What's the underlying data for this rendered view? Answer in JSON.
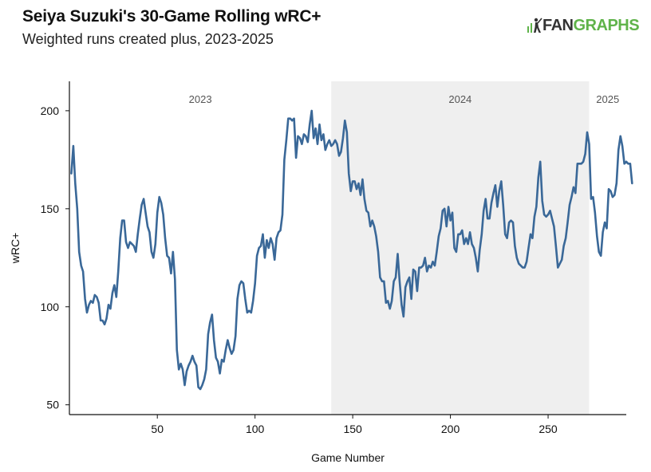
{
  "header": {
    "title": "Seiya Suzuki's 30-Game Rolling wRC+",
    "subtitle": "Weighted runs created plus, 2023-2025",
    "logo": {
      "fan": "FAN",
      "graphs": "GRAPHS",
      "icon": "fangraphs-logo-icon"
    }
  },
  "colors": {
    "line": "#3a6898",
    "band": "#efefef",
    "logo_green": "#5fb34a"
  },
  "chart_data": {
    "type": "line",
    "xlabel": "Game Number",
    "ylabel": "wRC+",
    "xlim": [
      5,
      290
    ],
    "ylim": [
      45,
      215
    ],
    "x_ticks": [
      50,
      100,
      150,
      200,
      250
    ],
    "y_ticks": [
      50,
      100,
      150,
      200
    ],
    "grid": false,
    "shaded_ranges": [
      {
        "label": "2023",
        "x": [
          5,
          139
        ],
        "shaded": false
      },
      {
        "label": "2024",
        "x": [
          139,
          271
        ],
        "shaded": true
      },
      {
        "label": "2025",
        "x": [
          271,
          290
        ],
        "shaded": false
      }
    ],
    "series": [
      {
        "points": [
          [
            6,
            168
          ],
          [
            7,
            182
          ],
          [
            8,
            163
          ],
          [
            9,
            150
          ],
          [
            10,
            128
          ],
          [
            11,
            121
          ],
          [
            12,
            118
          ],
          [
            13,
            104
          ],
          [
            14,
            97
          ],
          [
            15,
            101
          ],
          [
            16,
            103
          ],
          [
            17,
            102
          ],
          [
            18,
            106
          ],
          [
            19,
            105
          ],
          [
            20,
            102
          ],
          [
            21,
            93
          ],
          [
            22,
            93
          ],
          [
            23,
            91
          ],
          [
            24,
            94
          ],
          [
            25,
            101
          ],
          [
            26,
            99
          ],
          [
            27,
            107
          ],
          [
            28,
            111
          ],
          [
            29,
            105
          ],
          [
            30,
            118
          ],
          [
            31,
            135
          ],
          [
            32,
            144
          ],
          [
            33,
            144
          ],
          [
            34,
            133
          ],
          [
            35,
            130
          ],
          [
            36,
            133
          ],
          [
            37,
            132
          ],
          [
            38,
            131
          ],
          [
            39,
            128
          ],
          [
            40,
            137
          ],
          [
            41,
            145
          ],
          [
            42,
            152
          ],
          [
            43,
            155
          ],
          [
            44,
            148
          ],
          [
            45,
            141
          ],
          [
            46,
            138
          ],
          [
            47,
            128
          ],
          [
            48,
            125
          ],
          [
            49,
            132
          ],
          [
            50,
            148
          ],
          [
            51,
            156
          ],
          [
            52,
            153
          ],
          [
            53,
            147
          ],
          [
            54,
            135
          ],
          [
            55,
            126
          ],
          [
            56,
            125
          ],
          [
            57,
            117
          ],
          [
            58,
            128
          ],
          [
            59,
            114
          ],
          [
            60,
            78
          ],
          [
            61,
            68
          ],
          [
            62,
            71
          ],
          [
            63,
            68
          ],
          [
            64,
            60
          ],
          [
            65,
            67
          ],
          [
            66,
            70
          ],
          [
            67,
            72
          ],
          [
            68,
            75
          ],
          [
            69,
            72
          ],
          [
            70,
            70
          ],
          [
            71,
            59
          ],
          [
            72,
            58
          ],
          [
            73,
            60
          ],
          [
            74,
            63
          ],
          [
            75,
            68
          ],
          [
            76,
            86
          ],
          [
            77,
            92
          ],
          [
            78,
            96
          ],
          [
            79,
            83
          ],
          [
            80,
            74
          ],
          [
            81,
            72
          ],
          [
            82,
            66
          ],
          [
            83,
            73
          ],
          [
            84,
            72
          ],
          [
            85,
            78
          ],
          [
            86,
            83
          ],
          [
            87,
            79
          ],
          [
            88,
            76
          ],
          [
            89,
            78
          ],
          [
            90,
            85
          ],
          [
            91,
            104
          ],
          [
            92,
            111
          ],
          [
            93,
            113
          ],
          [
            94,
            112
          ],
          [
            95,
            104
          ],
          [
            96,
            97
          ],
          [
            97,
            98
          ],
          [
            98,
            97
          ],
          [
            99,
            103
          ],
          [
            100,
            112
          ],
          [
            101,
            126
          ],
          [
            102,
            130
          ],
          [
            103,
            131
          ],
          [
            104,
            137
          ],
          [
            105,
            125
          ],
          [
            106,
            134
          ],
          [
            107,
            130
          ],
          [
            108,
            135
          ],
          [
            109,
            132
          ],
          [
            110,
            124
          ],
          [
            111,
            135
          ],
          [
            112,
            138
          ],
          [
            113,
            139
          ],
          [
            114,
            147
          ],
          [
            115,
            175
          ],
          [
            116,
            185
          ],
          [
            117,
            196
          ],
          [
            118,
            196
          ],
          [
            119,
            195
          ],
          [
            120,
            196
          ],
          [
            121,
            176
          ],
          [
            122,
            187
          ],
          [
            123,
            186
          ],
          [
            124,
            183
          ],
          [
            125,
            188
          ],
          [
            126,
            187
          ],
          [
            127,
            184
          ],
          [
            128,
            193
          ],
          [
            129,
            200
          ],
          [
            130,
            186
          ],
          [
            131,
            191
          ],
          [
            132,
            183
          ],
          [
            133,
            193
          ],
          [
            134,
            185
          ],
          [
            135,
            188
          ],
          [
            136,
            180
          ],
          [
            137,
            183
          ],
          [
            138,
            185
          ],
          [
            139,
            182
          ],
          [
            140,
            183
          ],
          [
            141,
            185
          ],
          [
            142,
            183
          ],
          [
            143,
            177
          ],
          [
            144,
            179
          ],
          [
            145,
            186
          ],
          [
            146,
            195
          ],
          [
            147,
            189
          ],
          [
            148,
            168
          ],
          [
            149,
            159
          ],
          [
            150,
            164
          ],
          [
            151,
            164
          ],
          [
            152,
            160
          ],
          [
            153,
            163
          ],
          [
            154,
            157
          ],
          [
            155,
            165
          ],
          [
            156,
            155
          ],
          [
            157,
            149
          ],
          [
            158,
            148
          ],
          [
            159,
            141
          ],
          [
            160,
            144
          ],
          [
            161,
            141
          ],
          [
            162,
            136
          ],
          [
            163,
            128
          ],
          [
            164,
            115
          ],
          [
            165,
            113
          ],
          [
            166,
            113
          ],
          [
            167,
            102
          ],
          [
            168,
            103
          ],
          [
            169,
            99
          ],
          [
            170,
            103
          ],
          [
            171,
            113
          ],
          [
            172,
            115
          ],
          [
            173,
            127
          ],
          [
            174,
            113
          ],
          [
            175,
            101
          ],
          [
            176,
            95
          ],
          [
            177,
            110
          ],
          [
            178,
            113
          ],
          [
            179,
            115
          ],
          [
            180,
            104
          ],
          [
            181,
            119
          ],
          [
            182,
            118
          ],
          [
            183,
            108
          ],
          [
            184,
            120
          ],
          [
            185,
            120
          ],
          [
            186,
            121
          ],
          [
            187,
            125
          ],
          [
            188,
            118
          ],
          [
            189,
            121
          ],
          [
            190,
            120
          ],
          [
            191,
            123
          ],
          [
            192,
            121
          ],
          [
            193,
            128
          ],
          [
            194,
            136
          ],
          [
            195,
            140
          ],
          [
            196,
            149
          ],
          [
            197,
            150
          ],
          [
            198,
            141
          ],
          [
            199,
            151
          ],
          [
            200,
            144
          ],
          [
            201,
            148
          ],
          [
            202,
            130
          ],
          [
            203,
            128
          ],
          [
            204,
            137
          ],
          [
            205,
            137
          ],
          [
            206,
            139
          ],
          [
            207,
            132
          ],
          [
            208,
            135
          ],
          [
            209,
            132
          ],
          [
            210,
            138
          ],
          [
            211,
            132
          ],
          [
            212,
            130
          ],
          [
            213,
            125
          ],
          [
            214,
            118
          ],
          [
            215,
            129
          ],
          [
            216,
            137
          ],
          [
            217,
            149
          ],
          [
            218,
            155
          ],
          [
            219,
            145
          ],
          [
            220,
            145
          ],
          [
            221,
            153
          ],
          [
            222,
            158
          ],
          [
            223,
            162
          ],
          [
            224,
            151
          ],
          [
            225,
            159
          ],
          [
            226,
            164
          ],
          [
            227,
            152
          ],
          [
            228,
            137
          ],
          [
            229,
            135
          ],
          [
            230,
            143
          ],
          [
            231,
            144
          ],
          [
            232,
            143
          ],
          [
            233,
            131
          ],
          [
            234,
            125
          ],
          [
            235,
            122
          ],
          [
            236,
            121
          ],
          [
            237,
            120
          ],
          [
            238,
            120
          ],
          [
            239,
            123
          ],
          [
            240,
            130
          ],
          [
            241,
            137
          ],
          [
            242,
            135
          ],
          [
            243,
            146
          ],
          [
            244,
            151
          ],
          [
            245,
            166
          ],
          [
            246,
            174
          ],
          [
            247,
            154
          ],
          [
            248,
            147
          ],
          [
            249,
            146
          ],
          [
            250,
            147
          ],
          [
            251,
            149
          ],
          [
            252,
            145
          ],
          [
            253,
            141
          ],
          [
            254,
            131
          ],
          [
            255,
            120
          ],
          [
            256,
            122
          ],
          [
            257,
            124
          ],
          [
            258,
            131
          ],
          [
            259,
            135
          ],
          [
            260,
            143
          ],
          [
            261,
            152
          ],
          [
            262,
            156
          ],
          [
            263,
            161
          ],
          [
            264,
            158
          ],
          [
            265,
            173
          ],
          [
            266,
            173
          ],
          [
            267,
            173
          ],
          [
            268,
            174
          ],
          [
            269,
            178
          ],
          [
            270,
            189
          ],
          [
            271,
            183
          ],
          [
            272,
            155
          ],
          [
            273,
            156
          ],
          [
            274,
            148
          ],
          [
            275,
            136
          ],
          [
            276,
            128
          ],
          [
            277,
            126
          ],
          [
            278,
            138
          ],
          [
            279,
            143
          ],
          [
            280,
            140
          ],
          [
            281,
            160
          ],
          [
            282,
            159
          ],
          [
            283,
            156
          ],
          [
            284,
            157
          ],
          [
            285,
            163
          ],
          [
            286,
            180
          ],
          [
            287,
            187
          ],
          [
            288,
            182
          ],
          [
            289,
            173
          ],
          [
            290,
            174
          ],
          [
            291,
            173
          ],
          [
            292,
            173
          ],
          [
            293,
            163
          ]
        ]
      }
    ]
  }
}
